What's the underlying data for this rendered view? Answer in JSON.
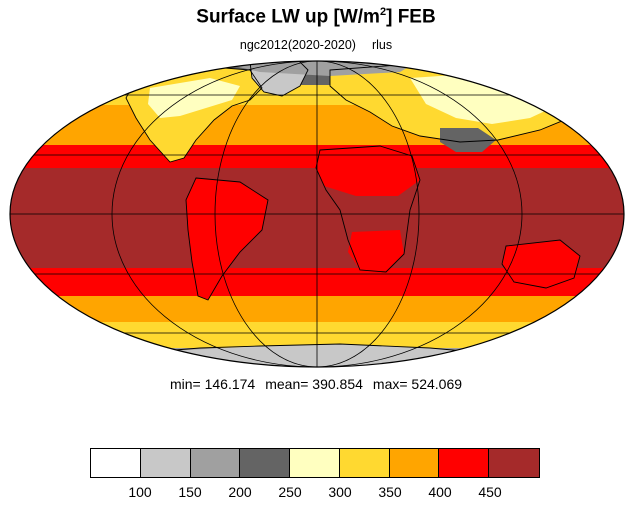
{
  "header": {
    "title_prefix": "Surface LW up [W/m",
    "title_sup": "2",
    "title_suffix": "]  FEB",
    "model_run": "ngc2012(2020-2020)",
    "variable": "rlus"
  },
  "stats": {
    "min": "min= 146.174",
    "mean": "mean= 390.854",
    "max": "max= 524.069"
  },
  "colorbar": {
    "colors": [
      "#ffffff",
      "#c8c8c8",
      "#a0a0a0",
      "#646464",
      "#ffffc0",
      "#ffd930",
      "#ffa500",
      "#ff0000",
      "#a52a2a"
    ],
    "tick_labels": [
      "100",
      "150",
      "200",
      "250",
      "300",
      "350",
      "400",
      "450"
    ]
  },
  "map": {
    "projection": "Mollweide",
    "field": "Surface LW up",
    "month": "FEB"
  }
}
